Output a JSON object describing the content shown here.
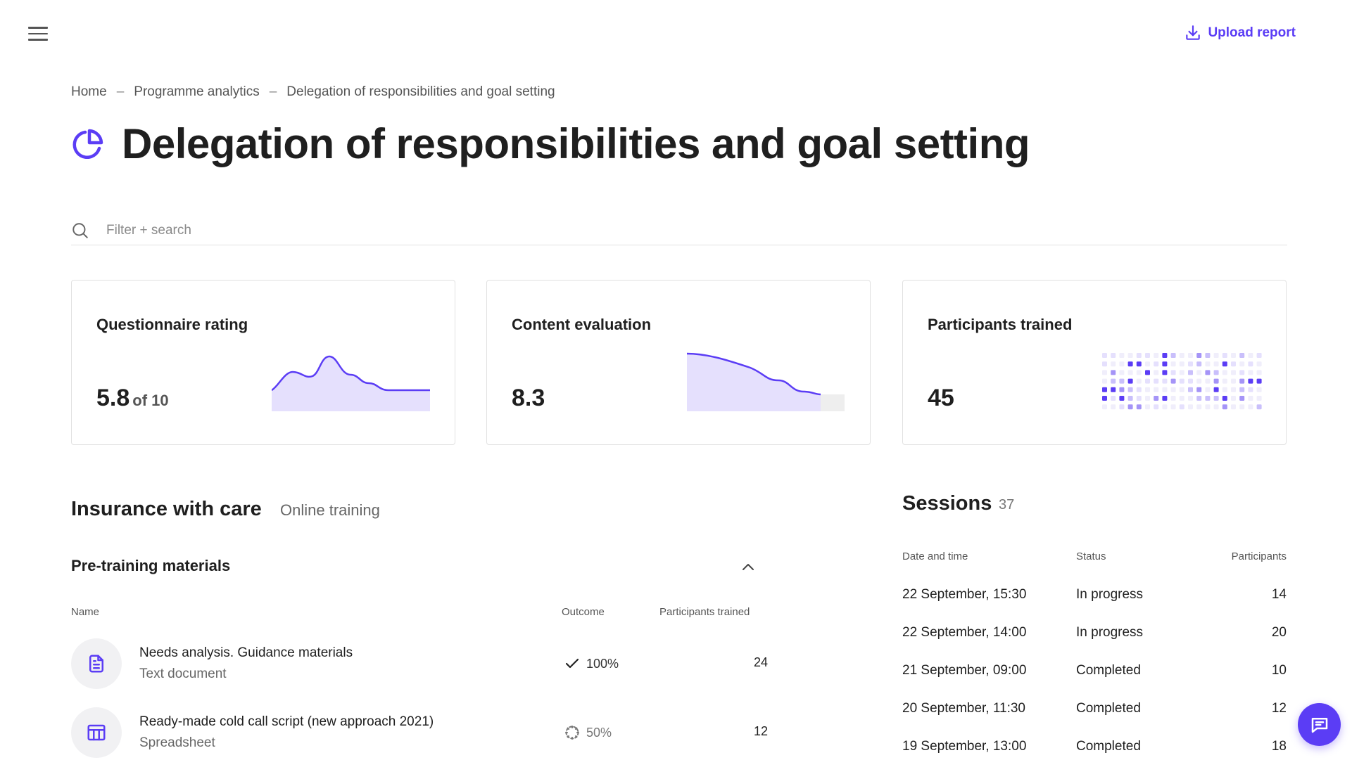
{
  "header": {
    "menu_icon": "hamburger-icon",
    "upload_label": "Upload report",
    "upload_icon": "download-icon",
    "accent_color": "#5b3df5"
  },
  "breadcrumb": {
    "items": [
      "Home",
      "Programme analytics",
      "Delegation of responsibilities and goal setting"
    ],
    "separator": "–"
  },
  "page": {
    "title": "Delegation of responsibilities and goal setting",
    "title_icon": "pie-chart-icon"
  },
  "search": {
    "placeholder": "Filter + search",
    "value": ""
  },
  "cards": [
    {
      "title": "Questionnaire rating",
      "value": "5.8",
      "suffix": "of 10"
    },
    {
      "title": "Content evaluation",
      "value": "8.3"
    },
    {
      "title": "Participants trained",
      "value": "45"
    }
  ],
  "course": {
    "title": "Insurance with care",
    "type": "Online training"
  },
  "materials": {
    "section_title": "Pre-training materials",
    "columns": {
      "name": "Name",
      "outcome": "Outcome",
      "participants": "Participants trained"
    },
    "rows": [
      {
        "name": "Needs analysis. Guidance materials",
        "type": "Text document",
        "outcome": "100%",
        "status": "complete",
        "participants": "24",
        "icon": "document-icon"
      },
      {
        "name": "Ready-made cold call script (new approach 2021)",
        "type": "Spreadsheet",
        "outcome": "50%",
        "status": "partial",
        "participants": "12",
        "icon": "spreadsheet-icon"
      }
    ]
  },
  "sessions": {
    "title": "Sessions",
    "count": "37",
    "columns": {
      "datetime": "Date and time",
      "status": "Status",
      "participants": "Participants"
    },
    "rows": [
      {
        "datetime": "22 September, 15:30",
        "status": "In progress",
        "participants": "14"
      },
      {
        "datetime": "22 September, 14:00",
        "status": "In progress",
        "participants": "20"
      },
      {
        "datetime": "21 September, 09:00",
        "status": "Completed",
        "participants": "10"
      },
      {
        "datetime": "20 September, 11:30",
        "status": "Completed",
        "participants": "12"
      },
      {
        "datetime": "19 September, 13:00",
        "status": "Completed",
        "participants": "18"
      }
    ]
  },
  "chat": {
    "icon": "chat-icon"
  }
}
